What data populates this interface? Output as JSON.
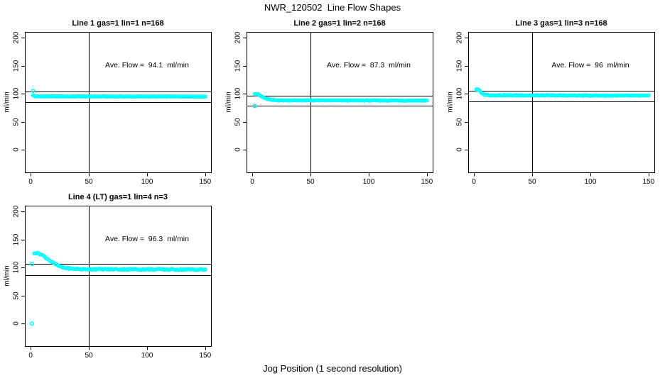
{
  "figure": {
    "title": "NWR_120502  Line Flow Shapes",
    "xlabel": "Jog Position (1 second resolution)",
    "background": "#ffffff"
  },
  "chart_data": {
    "type": "scatter",
    "point_color": "#00ffff",
    "line_color": "#000000",
    "ylabel": "ml/min",
    "units": "ml/min",
    "xlim": [
      -5,
      155
    ],
    "ylim": [
      -40,
      210
    ],
    "xticks": [
      0,
      50,
      100,
      150
    ],
    "yticks": [
      0,
      50,
      100,
      150,
      200
    ],
    "vline_x": 50,
    "grid": false,
    "panels": [
      {
        "title": "Line 1 gas=1 lin=1 n=168",
        "ave_flow": 94.1,
        "n": 168,
        "ave_flow_text": "Ave. Flow =  94.1  ml/min",
        "hline_upper": 103.5,
        "hline_lower": 84.7,
        "band_breakpoints": [
          [
            2,
            97
          ],
          [
            4,
            95.3
          ],
          [
            80,
            95
          ],
          [
            150,
            95
          ]
        ],
        "outliers": [
          [
            2,
            105
          ]
        ],
        "jitter": 0.45
      },
      {
        "title": "Line 2 gas=1 lin=2 n=168",
        "ave_flow": 87.3,
        "n": 168,
        "ave_flow_text": "Ave. Flow =  87.3  ml/min",
        "hline_upper": 96.0,
        "hline_lower": 78.6,
        "band_breakpoints": [
          [
            2,
            99.5
          ],
          [
            5,
            99
          ],
          [
            8,
            95
          ],
          [
            12,
            91
          ],
          [
            16,
            89
          ],
          [
            22,
            88.2
          ],
          [
            150,
            87.8
          ]
        ],
        "outliers": [
          [
            2,
            78
          ]
        ],
        "jitter": 0.5
      },
      {
        "title": "Line 3 gas=1 lin=3 n=168",
        "ave_flow": 96,
        "n": 168,
        "ave_flow_text": "Ave. Flow =  96  ml/min",
        "hline_upper": 105.6,
        "hline_lower": 86.4,
        "band_breakpoints": [
          [
            2,
            108
          ],
          [
            4,
            107
          ],
          [
            6,
            102
          ],
          [
            9,
            98.5
          ],
          [
            13,
            97.3
          ],
          [
            150,
            96.5
          ]
        ],
        "outliers": [],
        "jitter": 0.6
      },
      {
        "title": "Line 4 (LT) gas=1 lin=4 n=3",
        "ave_flow": 96.3,
        "n": 3,
        "ave_flow_text": "Ave. Flow =  96.3  ml/min",
        "hline_upper": 105.9,
        "hline_lower": 86.7,
        "band_breakpoints": [
          [
            3,
            126
          ],
          [
            7,
            125
          ],
          [
            10,
            122
          ],
          [
            14,
            116
          ],
          [
            18,
            110
          ],
          [
            22,
            105
          ],
          [
            26,
            101
          ],
          [
            30,
            99
          ],
          [
            35,
            97.8
          ],
          [
            45,
            97
          ],
          [
            150,
            96.3
          ]
        ],
        "outliers": [
          [
            1,
            106
          ],
          [
            1,
            0
          ]
        ],
        "jitter": 1.0
      }
    ]
  }
}
